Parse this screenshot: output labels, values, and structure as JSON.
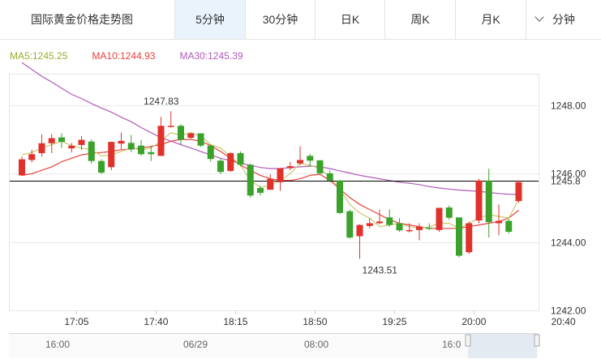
{
  "tabs": {
    "title": "国际黄金价格走势图",
    "items": [
      "5分钟",
      "30分钟",
      "日K",
      "周K",
      "月K"
    ],
    "active": "5分钟",
    "dropdown": "分钟"
  },
  "legend": {
    "ma5": "MA5:1245.25",
    "ma10": "MA10:1244.93",
    "ma30": "MA30:1245.39"
  },
  "colors": {
    "up": "#e0312b",
    "down": "#3aa12b",
    "ma5": "#c8c872",
    "ma10": "#e8413d",
    "ma30": "#b05ab9"
  },
  "chart_data": {
    "type": "candlestick",
    "ylim": [
      1242.0,
      1248.9
    ],
    "yticks": [
      1242.0,
      1244.0,
      1246.0,
      1248.0
    ],
    "ytick_labels": [
      "1242.00",
      "1244.00",
      "1246.00",
      "1248.00"
    ],
    "xtick_labels": [
      "17:05",
      "17:40",
      "18:15",
      "18:50",
      "19:25",
      "20:00",
      "20:40"
    ],
    "xtick_index": [
      5.5,
      13.5,
      21.5,
      29.5,
      37.5,
      45.5,
      54.5
    ],
    "current_price": 1245.8,
    "annotations": [
      {
        "text": "1247.83",
        "value": 1247.83,
        "index": 15
      },
      {
        "text": "1243.51",
        "value": 1243.51,
        "index": 37
      }
    ],
    "candles": [
      [
        1245.95,
        1246.42,
        1246.5,
        1245.93
      ],
      [
        1246.4,
        1246.57,
        1246.7,
        1246.33
      ],
      [
        1246.6,
        1246.89,
        1247.15,
        1246.5
      ],
      [
        1246.89,
        1247.04,
        1247.16,
        1246.6
      ],
      [
        1247.06,
        1246.93,
        1247.18,
        1246.75
      ],
      [
        1246.74,
        1246.82,
        1246.9,
        1246.62
      ],
      [
        1246.84,
        1246.99,
        1247.1,
        1246.7
      ],
      [
        1246.94,
        1246.37,
        1247.0,
        1246.29
      ],
      [
        1246.37,
        1246.03,
        1246.42,
        1245.99
      ],
      [
        1246.19,
        1246.93,
        1246.93,
        1246.1
      ],
      [
        1246.88,
        1246.96,
        1247.2,
        1246.72
      ],
      [
        1246.9,
        1246.71,
        1247.13,
        1246.63
      ],
      [
        1246.82,
        1246.57,
        1246.99,
        1246.53
      ],
      [
        1246.63,
        1246.57,
        1246.8,
        1246.37
      ],
      [
        1246.52,
        1247.4,
        1247.66,
        1246.52
      ],
      [
        1247.4,
        1247.4,
        1247.83,
        1247.35
      ],
      [
        1247.4,
        1246.99,
        1247.45,
        1246.85
      ],
      [
        1247.05,
        1247.18,
        1247.2,
        1247.02
      ],
      [
        1247.18,
        1246.82,
        1247.18,
        1246.78
      ],
      [
        1246.82,
        1246.43,
        1246.85,
        1246.35
      ],
      [
        1246.38,
        1246.05,
        1246.45,
        1245.99
      ],
      [
        1246.08,
        1246.6,
        1246.63,
        1246.05
      ],
      [
        1246.6,
        1246.26,
        1246.65,
        1246.21
      ],
      [
        1246.26,
        1245.36,
        1246.3,
        1245.3
      ],
      [
        1245.58,
        1245.44,
        1245.65,
        1245.36
      ],
      [
        1245.53,
        1245.85,
        1245.98,
        1245.53
      ],
      [
        1245.75,
        1246.16,
        1246.16,
        1245.5
      ],
      [
        1246.16,
        1246.22,
        1246.34,
        1246.1
      ],
      [
        1246.3,
        1246.4,
        1246.8,
        1246.25
      ],
      [
        1246.52,
        1246.38,
        1246.58,
        1246.2
      ],
      [
        1246.39,
        1246.01,
        1246.4,
        1245.97
      ],
      [
        1246.01,
        1245.8,
        1246.1,
        1245.75
      ],
      [
        1245.8,
        1244.85,
        1245.82,
        1244.82
      ],
      [
        1244.9,
        1244.13,
        1244.95,
        1244.1
      ],
      [
        1244.17,
        1244.5,
        1244.52,
        1243.51
      ],
      [
        1244.47,
        1244.55,
        1244.7,
        1244.4
      ],
      [
        1244.55,
        1244.6,
        1244.95,
        1244.52
      ],
      [
        1244.72,
        1244.5,
        1244.95,
        1244.45
      ],
      [
        1244.55,
        1244.34,
        1244.7,
        1244.3
      ],
      [
        1244.34,
        1244.35,
        1244.55,
        1244.28
      ],
      [
        1244.35,
        1244.45,
        1244.55,
        1244.05
      ],
      [
        1244.42,
        1244.4,
        1244.55,
        1244.35
      ],
      [
        1244.35,
        1245.0,
        1245.0,
        1244.3
      ],
      [
        1245.01,
        1244.71,
        1245.07,
        1244.65
      ],
      [
        1244.72,
        1243.6,
        1244.7,
        1243.55
      ],
      [
        1243.7,
        1244.55,
        1244.6,
        1243.65
      ],
      [
        1244.63,
        1245.8,
        1245.85,
        1244.55
      ],
      [
        1245.8,
        1244.58,
        1246.15,
        1244.13
      ],
      [
        1244.55,
        1244.62,
        1245.1,
        1244.2
      ],
      [
        1244.62,
        1244.3,
        1244.68,
        1244.25
      ],
      [
        1245.2,
        1245.75,
        1245.8,
        1245.15
      ]
    ],
    "ma5": [
      1246.55,
      1246.62,
      1246.75,
      1246.85,
      1246.95,
      1246.82,
      1246.75,
      1246.7,
      1246.52,
      1246.55,
      1246.65,
      1246.75,
      1246.7,
      1246.75,
      1246.95,
      1247.2,
      1247.12,
      1247.2,
      1247.1,
      1246.85,
      1246.75,
      1246.5,
      1246.25,
      1245.8,
      1245.6,
      1245.65,
      1245.8,
      1246.0,
      1246.3,
      1246.25,
      1246.15,
      1245.9,
      1245.55,
      1245.1,
      1244.85,
      1244.7,
      1244.45,
      1244.5,
      1244.55,
      1244.45,
      1244.4,
      1244.45,
      1244.55,
      1244.55,
      1244.4,
      1244.55,
      1244.7,
      1244.8,
      1244.75,
      1244.7,
      1245.25
    ],
    "ma10": [
      1245.95,
      1246.0,
      1246.1,
      1246.2,
      1246.35,
      1246.45,
      1246.55,
      1246.6,
      1246.62,
      1246.65,
      1246.7,
      1246.72,
      1246.75,
      1246.8,
      1246.85,
      1246.95,
      1247.0,
      1247.0,
      1246.95,
      1246.82,
      1246.65,
      1246.45,
      1246.25,
      1246.1,
      1245.95,
      1245.85,
      1245.8,
      1245.8,
      1245.85,
      1245.95,
      1245.98,
      1245.8,
      1245.55,
      1245.3,
      1245.1,
      1244.95,
      1244.8,
      1244.65,
      1244.55,
      1244.5,
      1244.45,
      1244.4,
      1244.4,
      1244.4,
      1244.4,
      1244.45,
      1244.5,
      1244.55,
      1244.6,
      1244.7,
      1244.93
    ],
    "ma30": [
      1249.25,
      1249.05,
      1248.85,
      1248.68,
      1248.5,
      1248.32,
      1248.2,
      1248.05,
      1247.92,
      1247.8,
      1247.65,
      1247.52,
      1247.35,
      1247.2,
      1247.05,
      1246.95,
      1246.85,
      1246.75,
      1246.65,
      1246.55,
      1246.45,
      1246.38,
      1246.3,
      1246.25,
      1246.18,
      1246.15,
      1246.15,
      1246.18,
      1246.2,
      1246.22,
      1246.2,
      1246.15,
      1246.08,
      1246.02,
      1245.95,
      1245.9,
      1245.85,
      1245.8,
      1245.75,
      1245.72,
      1245.68,
      1245.62,
      1245.58,
      1245.55,
      1245.52,
      1245.5,
      1245.48,
      1245.45,
      1245.42,
      1245.4,
      1245.39
    ]
  },
  "navigator": {
    "labels": [
      "16:00",
      "06/29",
      "08:00",
      "16:0"
    ]
  }
}
